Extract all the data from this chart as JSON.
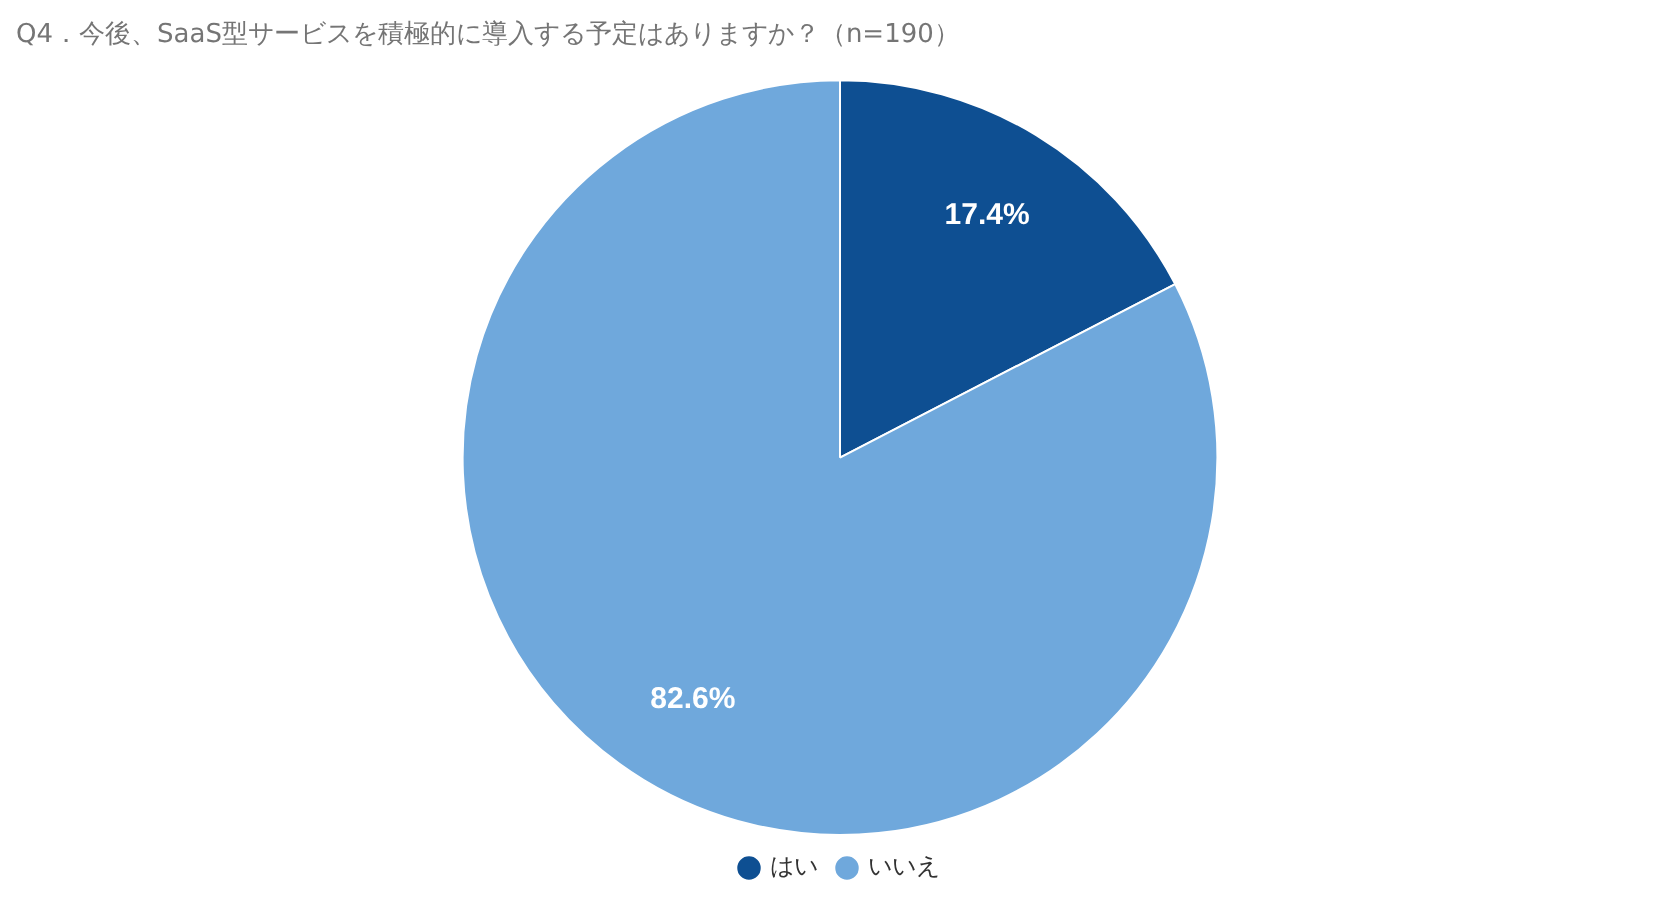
{
  "chart_data": {
    "type": "pie",
    "title": "Q4．今後、SaaS型サービスを積極的に導入する予定はありますか？（n=190）",
    "categories": [
      "はい",
      "いいえ"
    ],
    "values": [
      17.4,
      82.6
    ],
    "colors": [
      "#0e4f92",
      "#6fa8dc"
    ],
    "value_labels": [
      "17.4%",
      "82.6%"
    ],
    "legend": "bottom"
  }
}
